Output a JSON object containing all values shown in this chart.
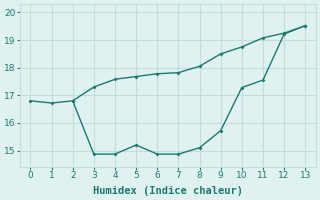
{
  "line1_x": [
    0,
    1,
    2,
    3,
    4,
    5,
    6,
    7,
    8,
    9,
    10,
    11,
    12,
    13
  ],
  "line1_y": [
    16.8,
    16.72,
    16.8,
    17.3,
    17.58,
    17.68,
    17.78,
    17.82,
    18.05,
    18.5,
    18.75,
    19.08,
    19.25,
    19.52
  ],
  "line2_x": [
    2,
    3,
    4,
    5,
    6,
    7,
    8,
    9,
    10,
    11,
    12,
    13
  ],
  "line2_y": [
    16.8,
    14.87,
    14.87,
    15.2,
    14.87,
    14.87,
    15.1,
    15.72,
    17.28,
    17.55,
    19.22,
    19.52
  ],
  "line_color": "#1a7a6e",
  "bg_color": "#dff2f0",
  "grid_color": "#c0dedd",
  "xlabel": "Humidex (Indice chaleur)",
  "xlabel_fontsize": 7.5,
  "xlim": [
    -0.5,
    13.5
  ],
  "ylim": [
    14.4,
    20.3
  ],
  "yticks": [
    15,
    16,
    17,
    18,
    19,
    20
  ],
  "xticks": [
    0,
    1,
    2,
    3,
    4,
    5,
    6,
    7,
    8,
    9,
    10,
    11,
    12,
    13
  ]
}
